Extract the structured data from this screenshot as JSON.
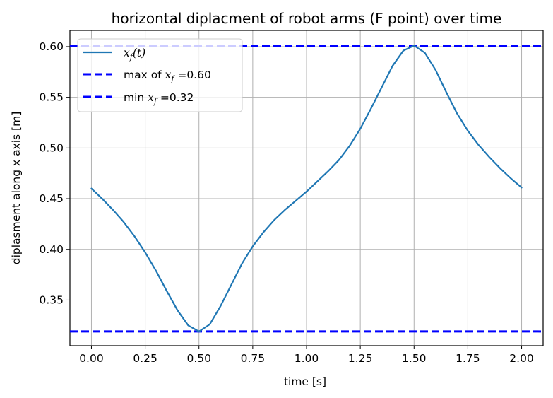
{
  "chart_data": {
    "type": "line",
    "title": "horizontal diplacment of robot arms (F point) over time",
    "xlabel": "time [s]",
    "ylabel": "diplasment along x axis [m]",
    "xlim": [
      -0.1,
      2.1
    ],
    "ylim": [
      0.305,
      0.616
    ],
    "x_ticks": [
      "0.00",
      "0.25",
      "0.50",
      "0.75",
      "1.00",
      "1.25",
      "1.50",
      "1.75",
      "2.00"
    ],
    "y_ticks": [
      "0.35",
      "0.40",
      "0.45",
      "0.50",
      "0.55",
      "0.60"
    ],
    "grid": true,
    "legend_position": "top-left",
    "series": [
      {
        "name": "x_f(t)",
        "color": "#1f77b4",
        "style": "solid",
        "x": [
          0.0,
          0.05,
          0.1,
          0.15,
          0.2,
          0.25,
          0.3,
          0.35,
          0.4,
          0.45,
          0.5,
          0.55,
          0.6,
          0.65,
          0.7,
          0.75,
          0.8,
          0.85,
          0.9,
          0.95,
          1.0,
          1.05,
          1.1,
          1.15,
          1.2,
          1.25,
          1.3,
          1.35,
          1.4,
          1.45,
          1.5,
          1.55,
          1.6,
          1.65,
          1.7,
          1.75,
          1.8,
          1.85,
          1.9,
          1.95,
          2.0
        ],
        "y": [
          0.46,
          0.45,
          0.439,
          0.427,
          0.413,
          0.397,
          0.379,
          0.359,
          0.34,
          0.325,
          0.319,
          0.326,
          0.344,
          0.365,
          0.386,
          0.403,
          0.417,
          0.429,
          0.439,
          0.448,
          0.457,
          0.467,
          0.477,
          0.488,
          0.502,
          0.519,
          0.539,
          0.56,
          0.581,
          0.596,
          0.601,
          0.594,
          0.577,
          0.555,
          0.534,
          0.517,
          0.503,
          0.491,
          0.48,
          0.47,
          0.461
        ]
      }
    ],
    "hlines": [
      {
        "name": "max of x_f =0.60",
        "y": 0.601,
        "color": "#0000ff",
        "style": "dashed"
      },
      {
        "name": "min x_f =0.32",
        "y": 0.319,
        "color": "#0000ff",
        "style": "dashed"
      }
    ]
  },
  "legend": {
    "series_var": "x",
    "series_sub": "f",
    "series_arg": "(t)",
    "max_prefix": "max of ",
    "max_var": "x",
    "max_sub": "f",
    "max_suffix": " =0.60",
    "min_prefix": "min ",
    "min_var": "x",
    "min_sub": "f",
    "min_suffix": " =0.32"
  }
}
